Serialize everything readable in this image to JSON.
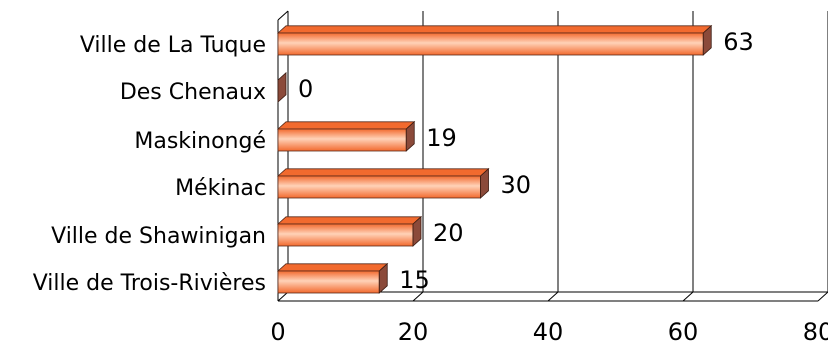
{
  "chart_data": {
    "type": "bar",
    "orientation": "horizontal",
    "style": "3d",
    "categories": [
      "Ville de La Tuque",
      "Des Chenaux",
      "Maskinongé",
      "Mékinac",
      "Ville de Shawinigan",
      "Ville de Trois-Rivières"
    ],
    "values": [
      63,
      0,
      19,
      30,
      20,
      15
    ],
    "data_labels": [
      "63",
      "0",
      "19",
      "30",
      "20",
      "15"
    ],
    "xlim": [
      0,
      80
    ],
    "xticks": [
      0,
      20,
      40,
      60,
      80
    ],
    "xtick_labels": [
      "0",
      "20",
      "40",
      "60",
      "80"
    ],
    "grid": "vertical gridlines",
    "legend": "none",
    "bar_color": "#f26a2e",
    "bar_highlight": "#ffd2b8",
    "bar_side_color": "#8b4a3a"
  }
}
